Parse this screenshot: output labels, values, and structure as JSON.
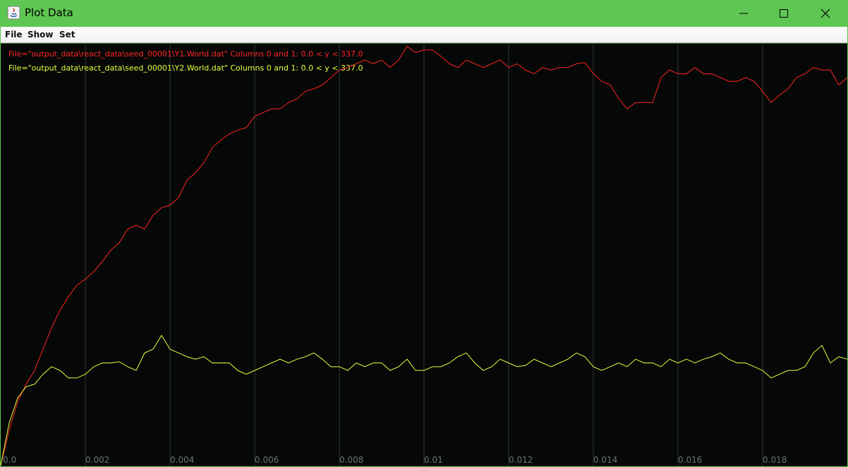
{
  "window": {
    "title": "Plot Data",
    "menu": [
      "File",
      "Show",
      "Set"
    ]
  },
  "chart_data": {
    "type": "line",
    "x": [
      0,
      0.0002,
      0.0004,
      0.0006,
      0.0008,
      0.001,
      0.0012,
      0.0014,
      0.0016,
      0.0018,
      0.002,
      0.0022,
      0.0024,
      0.0026,
      0.0028,
      0.003,
      0.0032,
      0.0034,
      0.0036,
      0.0038,
      0.004,
      0.0042,
      0.0044,
      0.0046,
      0.0048,
      0.005,
      0.0052,
      0.0054,
      0.0056,
      0.0058,
      0.006,
      0.0062,
      0.0064,
      0.0066,
      0.0068,
      0.007,
      0.0072,
      0.0074,
      0.0076,
      0.0078,
      0.008,
      0.0082,
      0.0084,
      0.0086,
      0.0088,
      0.009,
      0.0092,
      0.0094,
      0.0096,
      0.0098,
      0.01,
      0.0102,
      0.0104,
      0.0106,
      0.0108,
      0.011,
      0.0112,
      0.0114,
      0.0116,
      0.0118,
      0.012,
      0.0122,
      0.0124,
      0.0126,
      0.0128,
      0.013,
      0.0132,
      0.0134,
      0.0136,
      0.0138,
      0.014,
      0.0142,
      0.0144,
      0.0146,
      0.0148,
      0.015,
      0.0152,
      0.0154,
      0.0156,
      0.0158,
      0.016,
      0.0162,
      0.0164,
      0.0166,
      0.0168,
      0.017,
      0.0172,
      0.0174,
      0.0176,
      0.0178,
      0.018,
      0.0182,
      0.0184,
      0.0186,
      0.0188,
      0.019,
      0.0192,
      0.0194,
      0.0196,
      0.0198,
      0.02
    ],
    "series": [
      {
        "name": "File=\"output_data\\react_data\\seed_00001\\Y1.World.dat\" Columns 0 and 1: 0.0 < y < 337.0",
        "color": "#ff2424",
        "values": [
          0,
          28,
          51,
          65,
          76,
          93,
          110,
          124,
          135,
          144,
          149,
          155,
          163,
          172,
          178,
          189,
          192,
          189,
          200,
          206,
          208,
          214,
          228,
          234,
          242,
          254,
          260,
          265,
          268,
          270,
          279,
          282,
          285,
          285,
          290,
          293,
          299,
          301,
          304,
          310,
          316,
          318,
          321,
          324,
          321,
          324,
          318,
          324,
          335,
          330,
          332,
          332,
          327,
          321,
          318,
          324,
          321,
          318,
          321,
          324,
          318,
          321,
          316,
          313,
          318,
          316,
          318,
          318,
          321,
          322,
          313,
          307,
          304,
          293,
          285,
          290,
          290,
          290,
          310,
          316,
          313,
          313,
          318,
          313,
          313,
          310,
          307,
          307,
          310,
          307,
          299,
          290,
          296,
          301,
          310,
          313,
          318,
          316,
          316,
          304,
          310
        ]
      },
      {
        "name": "File=\"output_data\\react_data\\seed_00001\\Y2.World.dat\" Columns 0 and 1: 0.0 < y < 337.0",
        "color": "#e6ff3c",
        "values": [
          0,
          34,
          54,
          63,
          65,
          73,
          79,
          76,
          70,
          70,
          73,
          79,
          82,
          82,
          83,
          79,
          76,
          90,
          93,
          104,
          93,
          90,
          87,
          85,
          87,
          82,
          82,
          82,
          76,
          73,
          76,
          79,
          82,
          85,
          82,
          85,
          87,
          90,
          85,
          79,
          79,
          76,
          82,
          79,
          82,
          82,
          76,
          79,
          85,
          76,
          76,
          79,
          79,
          82,
          87,
          90,
          82,
          76,
          79,
          85,
          82,
          79,
          80,
          85,
          82,
          79,
          82,
          85,
          90,
          87,
          79,
          76,
          79,
          82,
          79,
          85,
          82,
          82,
          79,
          85,
          82,
          85,
          82,
          85,
          87,
          90,
          85,
          82,
          82,
          79,
          76,
          70,
          73,
          76,
          76,
          79,
          90,
          96,
          82,
          87,
          85
        ]
      }
    ],
    "xlim": [
      0,
      0.02
    ],
    "xticks": [
      {
        "value": 0,
        "label": "0.0"
      },
      0.002,
      0.004,
      0.006,
      0.008,
      0.01,
      0.012,
      0.014,
      0.016,
      0.018
    ],
    "ylim": [
      0,
      337
    ],
    "grid": true
  }
}
